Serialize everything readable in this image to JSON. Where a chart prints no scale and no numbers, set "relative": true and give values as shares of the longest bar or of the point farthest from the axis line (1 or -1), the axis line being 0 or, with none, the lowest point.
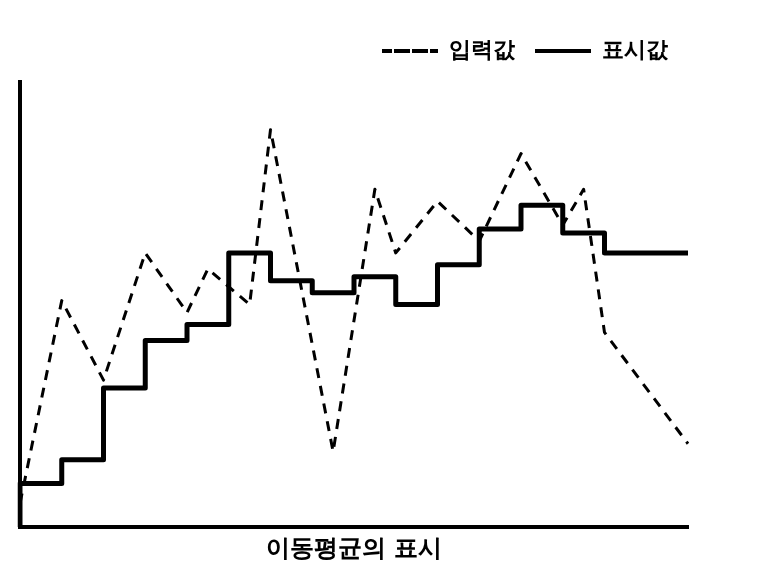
{
  "chart_data": {
    "type": "line",
    "relative": true,
    "xlabel": "이동평균의 표시",
    "grid": false,
    "legend": "top right",
    "marker": "none",
    "categories": [
      null,
      null,
      null,
      null,
      null,
      null,
      null,
      null,
      null,
      null,
      null,
      null,
      null,
      null,
      null,
      null,
      null,
      null,
      null,
      null,
      null,
      null,
      null,
      null,
      null,
      null,
      null,
      null,
      null,
      null,
      null,
      null,
      null
    ],
    "series": [
      {
        "name": "입력값",
        "color": "#000000",
        "line_style": "dashed",
        "values": [
          0.06,
          null,
          0.57,
          null,
          0.37,
          null,
          0.69,
          null,
          0.54,
          0.65,
          null,
          0.56,
          1,
          null,
          null,
          0.19,
          null,
          0.85,
          0.69,
          null,
          0.82,
          null,
          0.72,
          null,
          0.94,
          null,
          0.76,
          0.85,
          0.49,
          null,
          0.35,
          null,
          0.21
        ]
      },
      {
        "name": "표시값",
        "type": "step",
        "color": "#000000",
        "line_style": "solid",
        "values": [
          0,
          null,
          0.11,
          null,
          0.17,
          null,
          0.35,
          null,
          0.47,
          null,
          0.51,
          null,
          0.69,
          null,
          0.62,
          null,
          0.59,
          null,
          0.63,
          null,
          0.56,
          null,
          0.66,
          null,
          0.75,
          null,
          0.81,
          null,
          0.74,
          null,
          0.69,
          null,
          0.69
        ]
      }
    ]
  }
}
